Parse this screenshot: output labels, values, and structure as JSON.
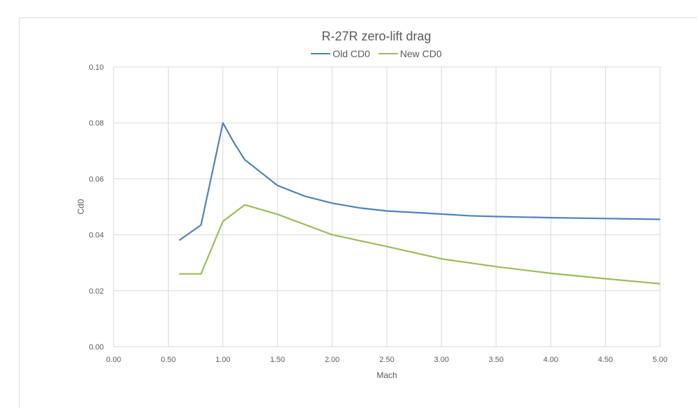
{
  "chart": {
    "title": "R-27R zero-lift drag",
    "legend": [
      {
        "label": "Old CD0",
        "color": "#4F81BD"
      },
      {
        "label": "New CD0",
        "color": "#9BBB59"
      }
    ],
    "xlabel": "Mach",
    "ylabel": "Cd0",
    "x_ticks": [
      "0.00",
      "0.50",
      "1.00",
      "1.50",
      "2.00",
      "2.50",
      "3.00",
      "3.50",
      "4.00",
      "4.50",
      "5.00"
    ],
    "y_ticks": [
      "0.00",
      "0.02",
      "0.04",
      "0.06",
      "0.08",
      "0.10"
    ]
  },
  "chart_data": {
    "type": "line",
    "title": "R-27R zero-lift drag",
    "xlabel": "Mach",
    "ylabel": "Cd0",
    "xlim": [
      0,
      5
    ],
    "ylim": [
      0,
      0.1
    ],
    "grid": true,
    "legend_position": "top",
    "series": [
      {
        "name": "Old CD0",
        "color": "#4F81BD",
        "x": [
          0.6,
          0.8,
          1.0,
          1.1,
          1.2,
          1.25,
          1.5,
          1.75,
          2.0,
          2.25,
          2.5,
          3.0,
          3.25,
          3.5,
          4.0,
          4.5,
          5.0
        ],
        "y": [
          0.038,
          0.0435,
          0.08,
          0.073,
          0.0668,
          0.0653,
          0.0576,
          0.0538,
          0.0513,
          0.0496,
          0.0485,
          0.0474,
          0.0468,
          0.0465,
          0.0461,
          0.0458,
          0.0455
        ]
      },
      {
        "name": "New CD0",
        "color": "#9BBB59",
        "x": [
          0.6,
          0.8,
          1.0,
          1.2,
          1.5,
          2.0,
          2.5,
          3.0,
          3.5,
          4.0,
          4.5,
          5.0
        ],
        "y": [
          0.026,
          0.026,
          0.0448,
          0.0507,
          0.0473,
          0.04,
          0.0358,
          0.0314,
          0.0286,
          0.0262,
          0.0243,
          0.0225
        ]
      }
    ]
  }
}
